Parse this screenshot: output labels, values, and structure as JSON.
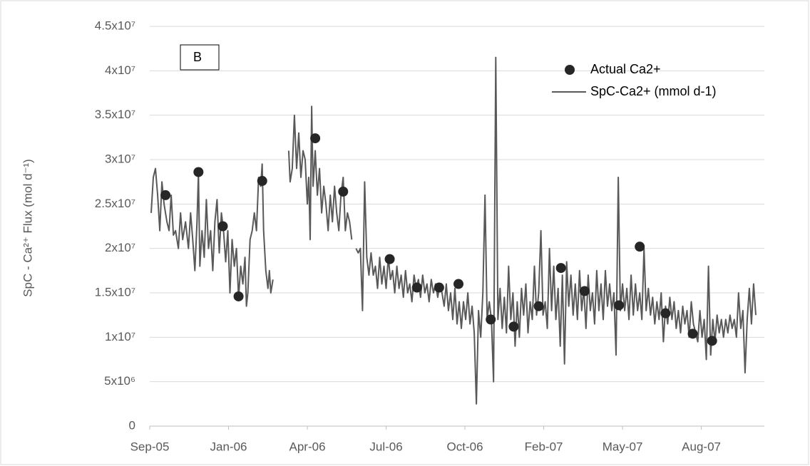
{
  "chart_data": {
    "type": "line",
    "annotation": "B",
    "y_label": "SpC - Ca²⁺ Flux (mol d⁻¹)",
    "xlim": [
      0,
      856
    ],
    "xticks": [
      {
        "value": 0,
        "label": "Sep-05"
      },
      {
        "value": 110,
        "label": "Jan-06"
      },
      {
        "value": 220,
        "label": "Apr-06"
      },
      {
        "value": 330,
        "label": "Jul-06"
      },
      {
        "value": 440,
        "label": "Oct-06"
      },
      {
        "value": 550,
        "label": "Feb-07"
      },
      {
        "value": 660,
        "label": "May-07"
      },
      {
        "value": 770,
        "label": "Aug-07"
      }
    ],
    "ylim": [
      0,
      45000000
    ],
    "yticks": [
      0,
      {
        "value": 5000000,
        "label": "5x10⁶"
      },
      {
        "value": 10000000,
        "label": "1x10⁷"
      },
      {
        "value": 15000000,
        "label": "1.5x10⁷"
      },
      {
        "value": 20000000,
        "label": "2x10⁷"
      },
      {
        "value": 25000000,
        "label": "2.5x10⁷"
      },
      {
        "value": 30000000,
        "label": "3x10⁷"
      },
      {
        "value": 35000000,
        "label": "3.5x10⁷"
      },
      {
        "value": 40000000,
        "label": "4x10⁷"
      },
      {
        "value": 45000000,
        "label": "4.5x10⁷"
      }
    ],
    "grid": true,
    "legend": "top-right",
    "series": [
      {
        "name": "Actual Ca2+",
        "type": "scatter",
        "color": "#262626",
        "x": [
          22,
          68,
          102,
          124,
          157,
          231,
          270,
          335,
          373,
          404,
          431,
          476,
          508,
          543,
          574,
          607,
          655,
          684,
          720,
          758,
          785
        ],
        "values": [
          26000000.0,
          28600000.0,
          22500000.0,
          14600000.0,
          27600000.0,
          32400000.0,
          26400000.0,
          18800000.0,
          15600000.0,
          15600000.0,
          16000000.0,
          12000000.0,
          11200000.0,
          13500000.0,
          17800000.0,
          15200000.0,
          13600000.0,
          20200000.0,
          12700000.0,
          10400000.0,
          9600000.0
        ]
      },
      {
        "name": "SpC-Ca2+ (mmol d-1)",
        "type": "line",
        "color": "#595959",
        "x": [
          2,
          5,
          8,
          11,
          14,
          17,
          20,
          24,
          27,
          30,
          33,
          36,
          40,
          43,
          46,
          50,
          54,
          57,
          60,
          63,
          66,
          68,
          70,
          73,
          76,
          79,
          82,
          85,
          88,
          91,
          94,
          97,
          100,
          103,
          106,
          109,
          112,
          115,
          118,
          121,
          124,
          127,
          130,
          133,
          135,
          137,
          140,
          143,
          146,
          149,
          152,
          155,
          157,
          159,
          162,
          165,
          167,
          169,
          172,
          180,
          194,
          196,
          199,
          202,
          205,
          208,
          211,
          214,
          217,
          220,
          222,
          224,
          226,
          228,
          231,
          234,
          237,
          240,
          243,
          246,
          249,
          252,
          255,
          258,
          261,
          264,
          267,
          270,
          273,
          276,
          279,
          282,
          285,
          288,
          291,
          294,
          297,
          300,
          303,
          306,
          309,
          312,
          315,
          318,
          321,
          324,
          327,
          330,
          333,
          336,
          339,
          342,
          345,
          348,
          351,
          354,
          357,
          360,
          363,
          366,
          369,
          372,
          375,
          378,
          381,
          384,
          387,
          390,
          393,
          396,
          399,
          402,
          405,
          408,
          411,
          414,
          417,
          420,
          423,
          426,
          429,
          432,
          435,
          438,
          441,
          444,
          447,
          450,
          453,
          456,
          459,
          462,
          465,
          468,
          471,
          474,
          477,
          480,
          483,
          486,
          489,
          492,
          495,
          498,
          501,
          504,
          507,
          510,
          513,
          516,
          519,
          522,
          525,
          528,
          531,
          534,
          537,
          540,
          543,
          546,
          549,
          552,
          555,
          558,
          561,
          564,
          567,
          570,
          573,
          576,
          579,
          582,
          585,
          588,
          591,
          594,
          597,
          600,
          603,
          606,
          609,
          612,
          615,
          618,
          621,
          624,
          627,
          630,
          633,
          636,
          639,
          642,
          645,
          648,
          651,
          654,
          657,
          660,
          663,
          666,
          669,
          672,
          675,
          678,
          681,
          684,
          687,
          690,
          693,
          696,
          699,
          702,
          705,
          708,
          711,
          714,
          717,
          720,
          723,
          726,
          729,
          732,
          735,
          738,
          741,
          744,
          747,
          750,
          753,
          756,
          759,
          762,
          765,
          768,
          771,
          774,
          777,
          780,
          783,
          786,
          789,
          792,
          795,
          798,
          801,
          804,
          807,
          810,
          813,
          816,
          819,
          822,
          825,
          828,
          831,
          834,
          837,
          840,
          843,
          846
        ],
        "values": [
          24000000.0,
          28000000.0,
          29000000.0,
          26000000.0,
          22000000.0,
          27500000.0,
          25000000.0,
          23000000.0,
          22000000.0,
          26000000.0,
          21500000.0,
          22000000.0,
          20000000.0,
          24000000.0,
          21000000.0,
          23000000.0,
          20000000.0,
          24000000.0,
          21000000.0,
          17500000.0,
          23000000.0,
          28500000.0,
          18000000.0,
          22000000.0,
          19000000.0,
          25500000.0,
          20000000.0,
          22000000.0,
          17500000.0,
          23000000.0,
          25500000.0,
          19500000.0,
          24000000.0,
          22000000.0,
          18500000.0,
          22000000.0,
          15000000.0,
          21000000.0,
          18000000.0,
          20000000.0,
          14500000.0,
          18000000.0,
          16000000.0,
          19000000.0,
          13500000.0,
          15000000.0,
          21000000.0,
          22000000.0,
          24000000.0,
          22000000.0,
          28000000.0,
          27000000.0,
          29500000.0,
          22000000.0,
          17500000.0,
          15500000.0,
          17500000.0,
          15000000.0,
          16500000.0,
          null,
          31000000.0,
          27500000.0,
          29000000.0,
          35000000.0,
          29000000.0,
          33000000.0,
          28000000.0,
          31000000.0,
          30000000.0,
          25000000.0,
          28000000.0,
          21000000.0,
          36000000.0,
          27000000.0,
          31000000.0,
          26000000.0,
          29000000.0,
          24000000.0,
          27000000.0,
          25000000.0,
          22000000.0,
          26000000.0,
          23000000.0,
          27000000.0,
          24000000.0,
          22000000.0,
          26000000.0,
          28000000.0,
          22000000.0,
          24000000.0,
          23000000.0,
          21000000.0,
          null,
          20000000.0,
          19500000.0,
          20000000.0,
          13000000.0,
          27500000.0,
          19000000.0,
          17000000.0,
          19500000.0,
          17000000.0,
          18000000.0,
          15500000.0,
          19000000.0,
          16000000.0,
          18000000.0,
          15500000.0,
          19000000.0,
          16500000.0,
          17500000.0,
          15000000.0,
          18000000.0,
          15500000.0,
          17000000.0,
          14500000.0,
          17500000.0,
          15000000.0,
          16000000.0,
          14000000.0,
          17000000.0,
          15500000.0,
          16500000.0,
          14500000.0,
          17000000.0,
          15000000.0,
          16000000.0,
          14000000.0,
          16500000.0,
          15000000.0,
          16000000.0,
          14500000.0,
          16000000.0,
          15000000.0,
          13500000.0,
          16000000.0,
          13000000.0,
          15000000.0,
          12000000.0,
          15500000.0,
          11500000.0,
          14000000.0,
          11000000.0,
          14000000.0,
          12000000.0,
          15000000.0,
          11500000.0,
          13500000.0,
          10500000.0,
          2500000.0,
          13000000.0,
          10000000.0,
          15000000.0,
          26000000.0,
          12000000.0,
          14000000.0,
          12000000.0,
          5000000.0,
          41500000.0,
          12000000.0,
          15500000.0,
          11000000.0,
          14500000.0,
          10500000.0,
          18000000.0,
          12000000.0,
          15000000.0,
          9000000.0,
          14000000.0,
          10000000.0,
          15500000.0,
          12500000.0,
          16000000.0,
          10500000.0,
          14000000.0,
          12000000.0,
          18000000.0,
          12500000.0,
          15000000.0,
          22000000.0,
          12500000.0,
          14000000.0,
          11000000.0,
          20000000.0,
          13000000.0,
          18000000.0,
          12000000.0,
          15500000.0,
          9000000.0,
          17000000.0,
          7000000.0,
          18500000.0,
          13500000.0,
          17000000.0,
          12500000.0,
          16000000.0,
          12000000.0,
          17500000.0,
          13000000.0,
          15500000.0,
          11000000.0,
          17000000.0,
          13000000.0,
          15000000.0,
          11500000.0,
          17500000.0,
          13000000.0,
          16000000.0,
          12000000.0,
          17500000.0,
          13500000.0,
          16000000.0,
          13000000.0,
          15000000.0,
          8000000.0,
          28000000.0,
          13000000.0,
          16000000.0,
          13000000.0,
          15500000.0,
          12000000.0,
          17000000.0,
          12500000.0,
          16000000.0,
          13000000.0,
          15000000.0,
          12000000.0,
          20000000.0,
          13000000.0,
          15500000.0,
          12500000.0,
          14500000.0,
          11500000.0,
          14000000.0,
          12000000.0,
          15000000.0,
          9500000.0,
          13500000.0,
          11500000.0,
          14500000.0,
          12000000.0,
          14000000.0,
          11000000.0,
          13000000.0,
          10500000.0,
          13500000.0,
          11500000.0,
          13000000.0,
          10000000.0,
          14000000.0,
          11500000.0,
          10500000.0,
          9500000.0,
          13000000.0,
          10000000.0,
          12000000.0,
          7500000.0,
          18000000.0,
          8000000.0,
          12000000.0,
          9500000.0,
          12500000.0,
          10500000.0,
          12000000.0,
          10000000.0,
          12000000.0,
          10500000.0,
          12500000.0,
          11000000.0,
          12000000.0,
          10000000.0,
          15000000.0,
          11000000.0,
          13000000.0,
          6000000.0,
          12000000.0,
          15500000.0,
          11500000.0,
          16000000.0,
          12500000.0
        ]
      }
    ]
  }
}
